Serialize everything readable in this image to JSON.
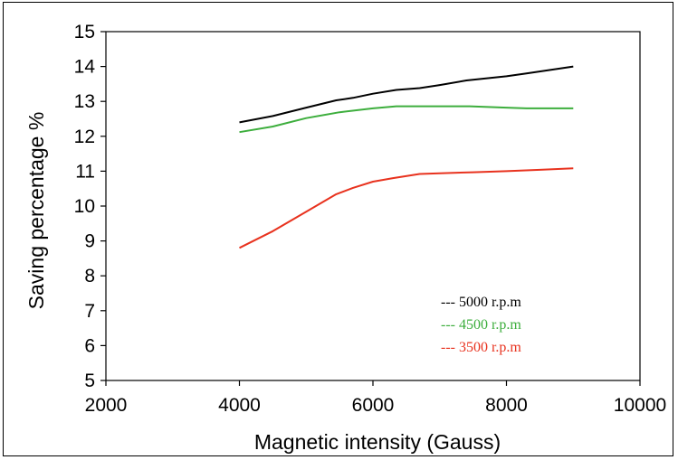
{
  "chart_data": {
    "type": "line",
    "title": "",
    "xlabel": "Magnetic intensity (Gauss)",
    "ylabel": "Saving percentage %",
    "xlim": [
      2000,
      10000
    ],
    "ylim": [
      5,
      15
    ],
    "xticks": [
      2000,
      4000,
      6000,
      8000,
      10000
    ],
    "yticks": [
      5,
      6,
      7,
      8,
      9,
      10,
      11,
      12,
      13,
      14,
      15
    ],
    "grid": false,
    "legend_position": "bottom-right",
    "series": [
      {
        "name": "--- 5000 r.p.m",
        "color": "#000000",
        "x": [
          4000,
          4500,
          5000,
          5450,
          5700,
          6000,
          6350,
          6700,
          7000,
          7400,
          8000,
          8300,
          9000
        ],
        "y": [
          12.4,
          12.58,
          12.82,
          13.03,
          13.1,
          13.22,
          13.33,
          13.38,
          13.47,
          13.6,
          13.72,
          13.8,
          14.0
        ]
      },
      {
        "name": "--- 4500 r.p.m",
        "color": "#3dae3d",
        "x": [
          4000,
          4500,
          5000,
          5500,
          6000,
          6350,
          7000,
          7450,
          8000,
          8300,
          9000
        ],
        "y": [
          12.12,
          12.28,
          12.52,
          12.69,
          12.8,
          12.86,
          12.86,
          12.86,
          12.82,
          12.8,
          12.8
        ]
      },
      {
        "name": "--- 3500 r.p.m",
        "color": "#e8321e",
        "x": [
          4000,
          4500,
          5000,
          5450,
          5700,
          6000,
          6300,
          6700,
          7000,
          7500,
          8000,
          8500,
          9000
        ],
        "y": [
          8.8,
          9.28,
          9.84,
          10.34,
          10.52,
          10.7,
          10.8,
          10.92,
          10.94,
          10.97,
          11.0,
          11.04,
          11.08
        ]
      }
    ]
  }
}
